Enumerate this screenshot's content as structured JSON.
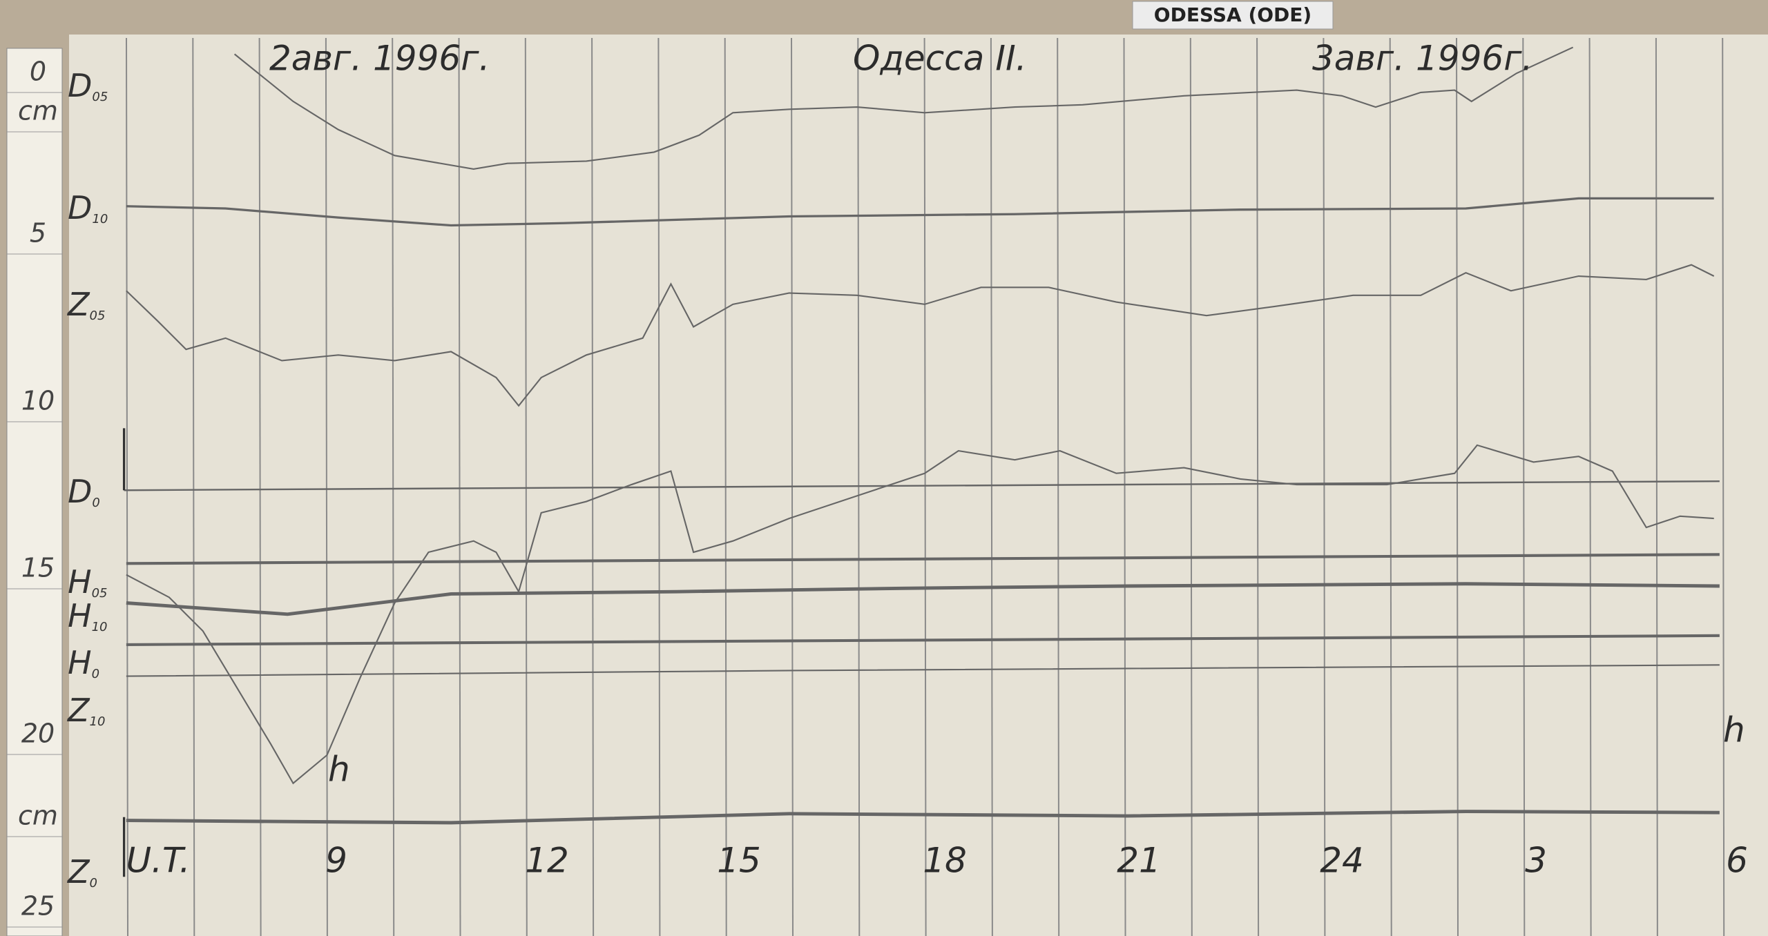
{
  "label": "ODESSA (ODE)",
  "header": {
    "date_start": "2авг. 1996г.",
    "station": "Одесса II.",
    "date_end": "3авг. 1996г."
  },
  "traces": [
    {
      "symbol": "D",
      "sub": "05"
    },
    {
      "symbol": "D",
      "sub": "10"
    },
    {
      "symbol": "Z",
      "sub": "05"
    },
    {
      "symbol": "D",
      "sub": "0"
    },
    {
      "symbol": "H",
      "sub": "05"
    },
    {
      "symbol": "H",
      "sub": "10"
    },
    {
      "symbol": "H",
      "sub": "0"
    },
    {
      "symbol": "Z",
      "sub": "10"
    },
    {
      "symbol": "Z",
      "sub": "0"
    }
  ],
  "ruler": [
    "0",
    "cm",
    "5",
    "10",
    "15",
    "20",
    "cm",
    "25"
  ],
  "time_axis": [
    "U.T.",
    "9",
    "12",
    "15",
    "18",
    "21",
    "24",
    "3",
    "6"
  ],
  "hour_mark": "h"
}
